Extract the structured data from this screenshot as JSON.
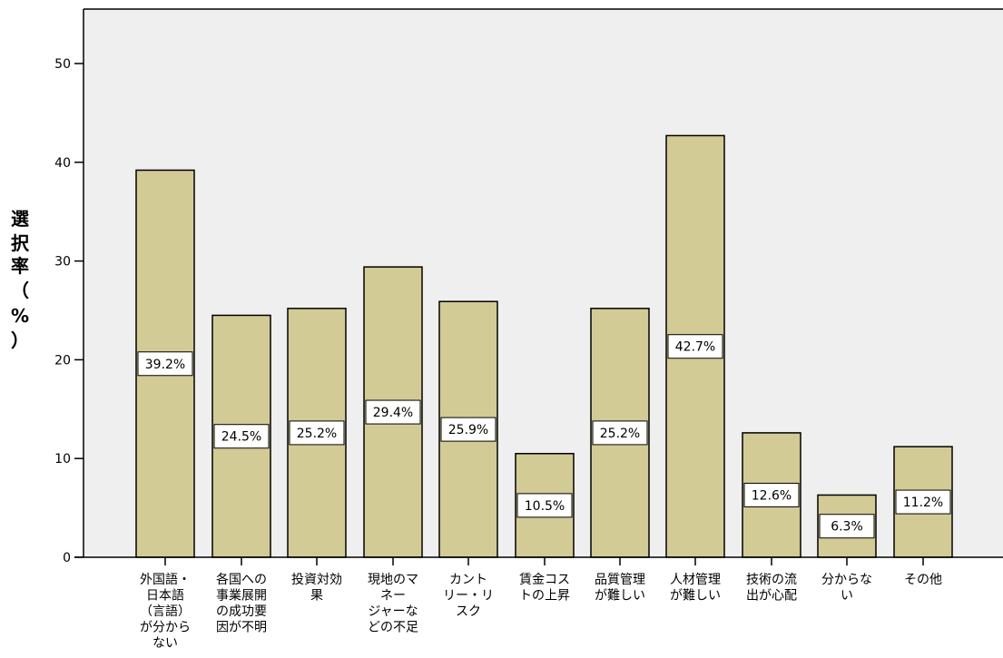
{
  "chart_data": {
    "type": "bar",
    "categories": [
      [
        "外国語・",
        "日本語",
        "（言語）",
        "が分から",
        "ない"
      ],
      [
        "各国への",
        "事業展開",
        "の成功要",
        "因が不明"
      ],
      [
        "投資対効",
        "果"
      ],
      [
        "現地のマ",
        "ネー",
        "ジャーな",
        "どの不足"
      ],
      [
        "カント",
        "リー・リ",
        "スク"
      ],
      [
        "賃金コス",
        "トの上昇"
      ],
      [
        "品質管理",
        "が難しい"
      ],
      [
        "人材管理",
        "が難しい"
      ],
      [
        "技術の流",
        "出が心配"
      ],
      [
        "分からな",
        "い"
      ],
      [
        "その他"
      ]
    ],
    "values": [
      39.2,
      24.5,
      25.2,
      29.4,
      25.9,
      10.5,
      25.2,
      42.7,
      12.6,
      6.3,
      11.2
    ],
    "data_labels": [
      "39.2%",
      "24.5%",
      "25.2%",
      "29.4%",
      "25.9%",
      "10.5%",
      "25.2%",
      "42.7%",
      "12.6%",
      "6.3%",
      "11.2%"
    ],
    "ylabel": [
      "選",
      "択",
      "率",
      "（",
      "%",
      "）"
    ],
    "ylim": [
      0,
      55
    ],
    "yticks": [
      0,
      10,
      20,
      30,
      40,
      50
    ],
    "bar_color": "#d2cb96",
    "plot_bg": "#efefef",
    "grid": false
  }
}
